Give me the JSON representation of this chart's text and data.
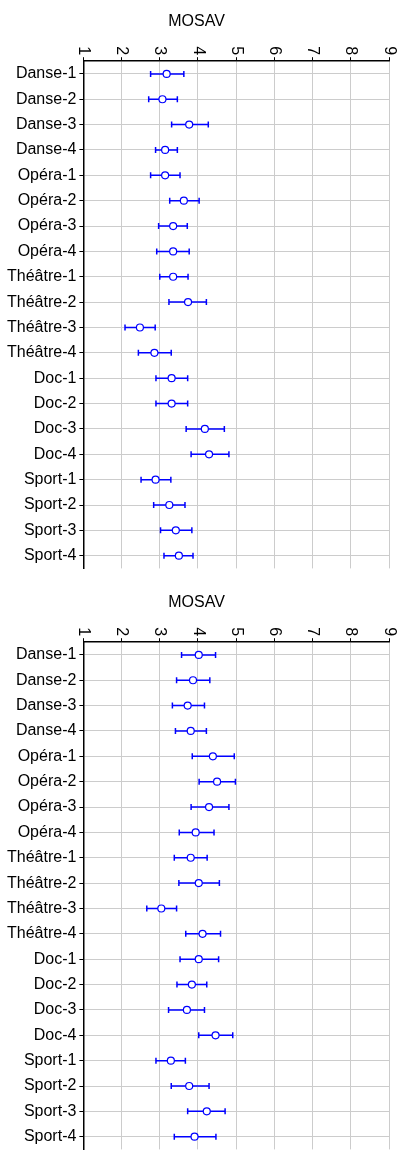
{
  "chart_data": [
    {
      "type": "scatter",
      "title": "MOSAV",
      "orientation": "horizontal",
      "color": "#0000ff",
      "marker": "circle",
      "grid": true,
      "xlim": [
        1,
        9
      ],
      "xticks": [
        1,
        2,
        3,
        4,
        5,
        6,
        7,
        8,
        9
      ],
      "categories": [
        "Danse-1",
        "Danse-2",
        "Danse-3",
        "Danse-4",
        "Opéra-1",
        "Opéra-2",
        "Opéra-3",
        "Opéra-4",
        "Théâtre-1",
        "Théâtre-2",
        "Théâtre-3",
        "Théâtre-4",
        "Doc-1",
        "Doc-2",
        "Doc-3",
        "Doc-4",
        "Sport-1",
        "Sport-2",
        "Sport-3",
        "Sport-4"
      ],
      "values": [
        3.18,
        3.07,
        3.77,
        3.14,
        3.14,
        3.63,
        3.35,
        3.35,
        3.35,
        3.74,
        2.48,
        2.86,
        3.31,
        3.31,
        4.18,
        4.29,
        2.89,
        3.25,
        3.42,
        3.5
      ],
      "errors": [
        [
          2.76,
          3.63
        ],
        [
          2.71,
          3.46
        ],
        [
          3.31,
          4.27
        ],
        [
          2.89,
          3.46
        ],
        [
          2.76,
          3.53
        ],
        [
          3.26,
          4.03
        ],
        [
          2.97,
          3.72
        ],
        [
          2.92,
          3.77
        ],
        [
          3.0,
          3.74
        ],
        [
          3.24,
          4.22
        ],
        [
          2.09,
          2.88
        ],
        [
          2.44,
          3.3
        ],
        [
          2.9,
          3.73
        ],
        [
          2.9,
          3.73
        ],
        [
          3.69,
          4.69
        ],
        [
          3.82,
          4.81
        ],
        [
          2.51,
          3.29
        ],
        [
          2.84,
          3.66
        ],
        [
          3.02,
          3.84
        ],
        [
          3.11,
          3.87
        ]
      ]
    },
    {
      "type": "scatter",
      "title": "MOSAV",
      "orientation": "horizontal",
      "color": "#0000ff",
      "marker": "circle",
      "grid": true,
      "xlim": [
        1,
        9
      ],
      "xticks": [
        1,
        2,
        3,
        4,
        5,
        6,
        7,
        8,
        9
      ],
      "categories": [
        "Danse-1",
        "Danse-2",
        "Danse-3",
        "Danse-4",
        "Opéra-1",
        "Opéra-2",
        "Opéra-3",
        "Opéra-4",
        "Théâtre-1",
        "Théâtre-2",
        "Théâtre-3",
        "Théâtre-4",
        "Doc-1",
        "Doc-2",
        "Doc-3",
        "Doc-4",
        "Sport-1",
        "Sport-2",
        "Sport-3",
        "Sport-4"
      ],
      "values": [
        4.02,
        3.87,
        3.73,
        3.81,
        4.39,
        4.5,
        4.29,
        3.94,
        3.81,
        4.02,
        3.04,
        4.12,
        4.02,
        3.84,
        3.71,
        4.46,
        3.29,
        3.77,
        4.23,
        3.91
      ],
      "errors": [
        [
          3.57,
          4.46
        ],
        [
          3.44,
          4.31
        ],
        [
          3.33,
          4.17
        ],
        [
          3.41,
          4.22
        ],
        [
          3.85,
          4.95
        ],
        [
          4.03,
          4.98
        ],
        [
          3.82,
          4.81
        ],
        [
          3.51,
          4.42
        ],
        [
          3.38,
          4.24
        ],
        [
          3.5,
          4.56
        ],
        [
          2.66,
          3.44
        ],
        [
          3.68,
          4.59
        ],
        [
          3.53,
          4.54
        ],
        [
          3.45,
          4.23
        ],
        [
          3.23,
          4.17
        ],
        [
          4.02,
          4.91
        ],
        [
          2.9,
          3.67
        ],
        [
          3.3,
          4.29
        ],
        [
          3.73,
          4.71
        ],
        [
          3.38,
          4.47
        ]
      ]
    }
  ]
}
